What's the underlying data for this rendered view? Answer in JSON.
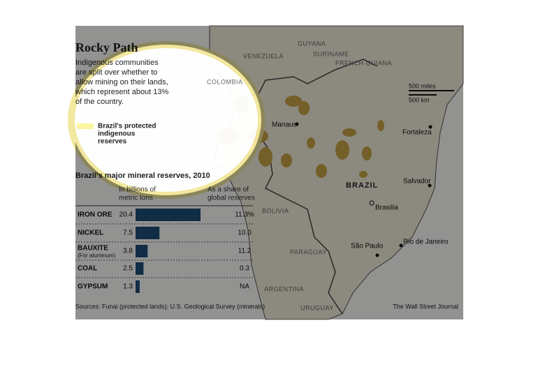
{
  "header": {
    "title": "Rocky Path",
    "description": [
      "Indigenous communities",
      "are split over whether to",
      "allow mining on their lands,",
      "which represent about 13%",
      "of the country."
    ],
    "legend": [
      "Brazil's protected",
      "indigenous",
      "reserves"
    ]
  },
  "map": {
    "countries": [
      "VENEZUELA",
      "GUYANA",
      "SURINAME",
      "FRENCH GUIANA",
      "COLOMBIA",
      "BOLIVIA",
      "PARAGUAY",
      "ARGENTINA",
      "URUGUAY",
      "BRAZIL"
    ],
    "cities": [
      "Manaus",
      "Fortaleza",
      "Salvador",
      "Brasilia",
      "São Paulo",
      "Rio de Janeiro"
    ],
    "scale": [
      "500 miles",
      "500 km"
    ]
  },
  "chart_data": {
    "type": "bar",
    "title": "Brazil's major mineral reserves, 2010",
    "value_header": [
      "In billions of",
      "metric tons"
    ],
    "share_header": [
      "As a share of",
      "global reserves"
    ],
    "categories": [
      "IRON ORE",
      "NICKEL",
      "BAUXITE",
      "COAL",
      "GYPSUM"
    ],
    "category_notes": [
      null,
      null,
      "(For aluminum)",
      null,
      null
    ],
    "values": [
      20.4,
      7.5,
      3.8,
      2.5,
      1.3
    ],
    "color": "#1f4e79",
    "shares": [
      "11.3%",
      "10.0",
      "11.2",
      "0.3",
      "NA"
    ]
  },
  "footer": {
    "sources": "Sources: Funai (protected lands); U.S. Geological Survey (minerals)",
    "credit": "The Wall Street Journal"
  }
}
